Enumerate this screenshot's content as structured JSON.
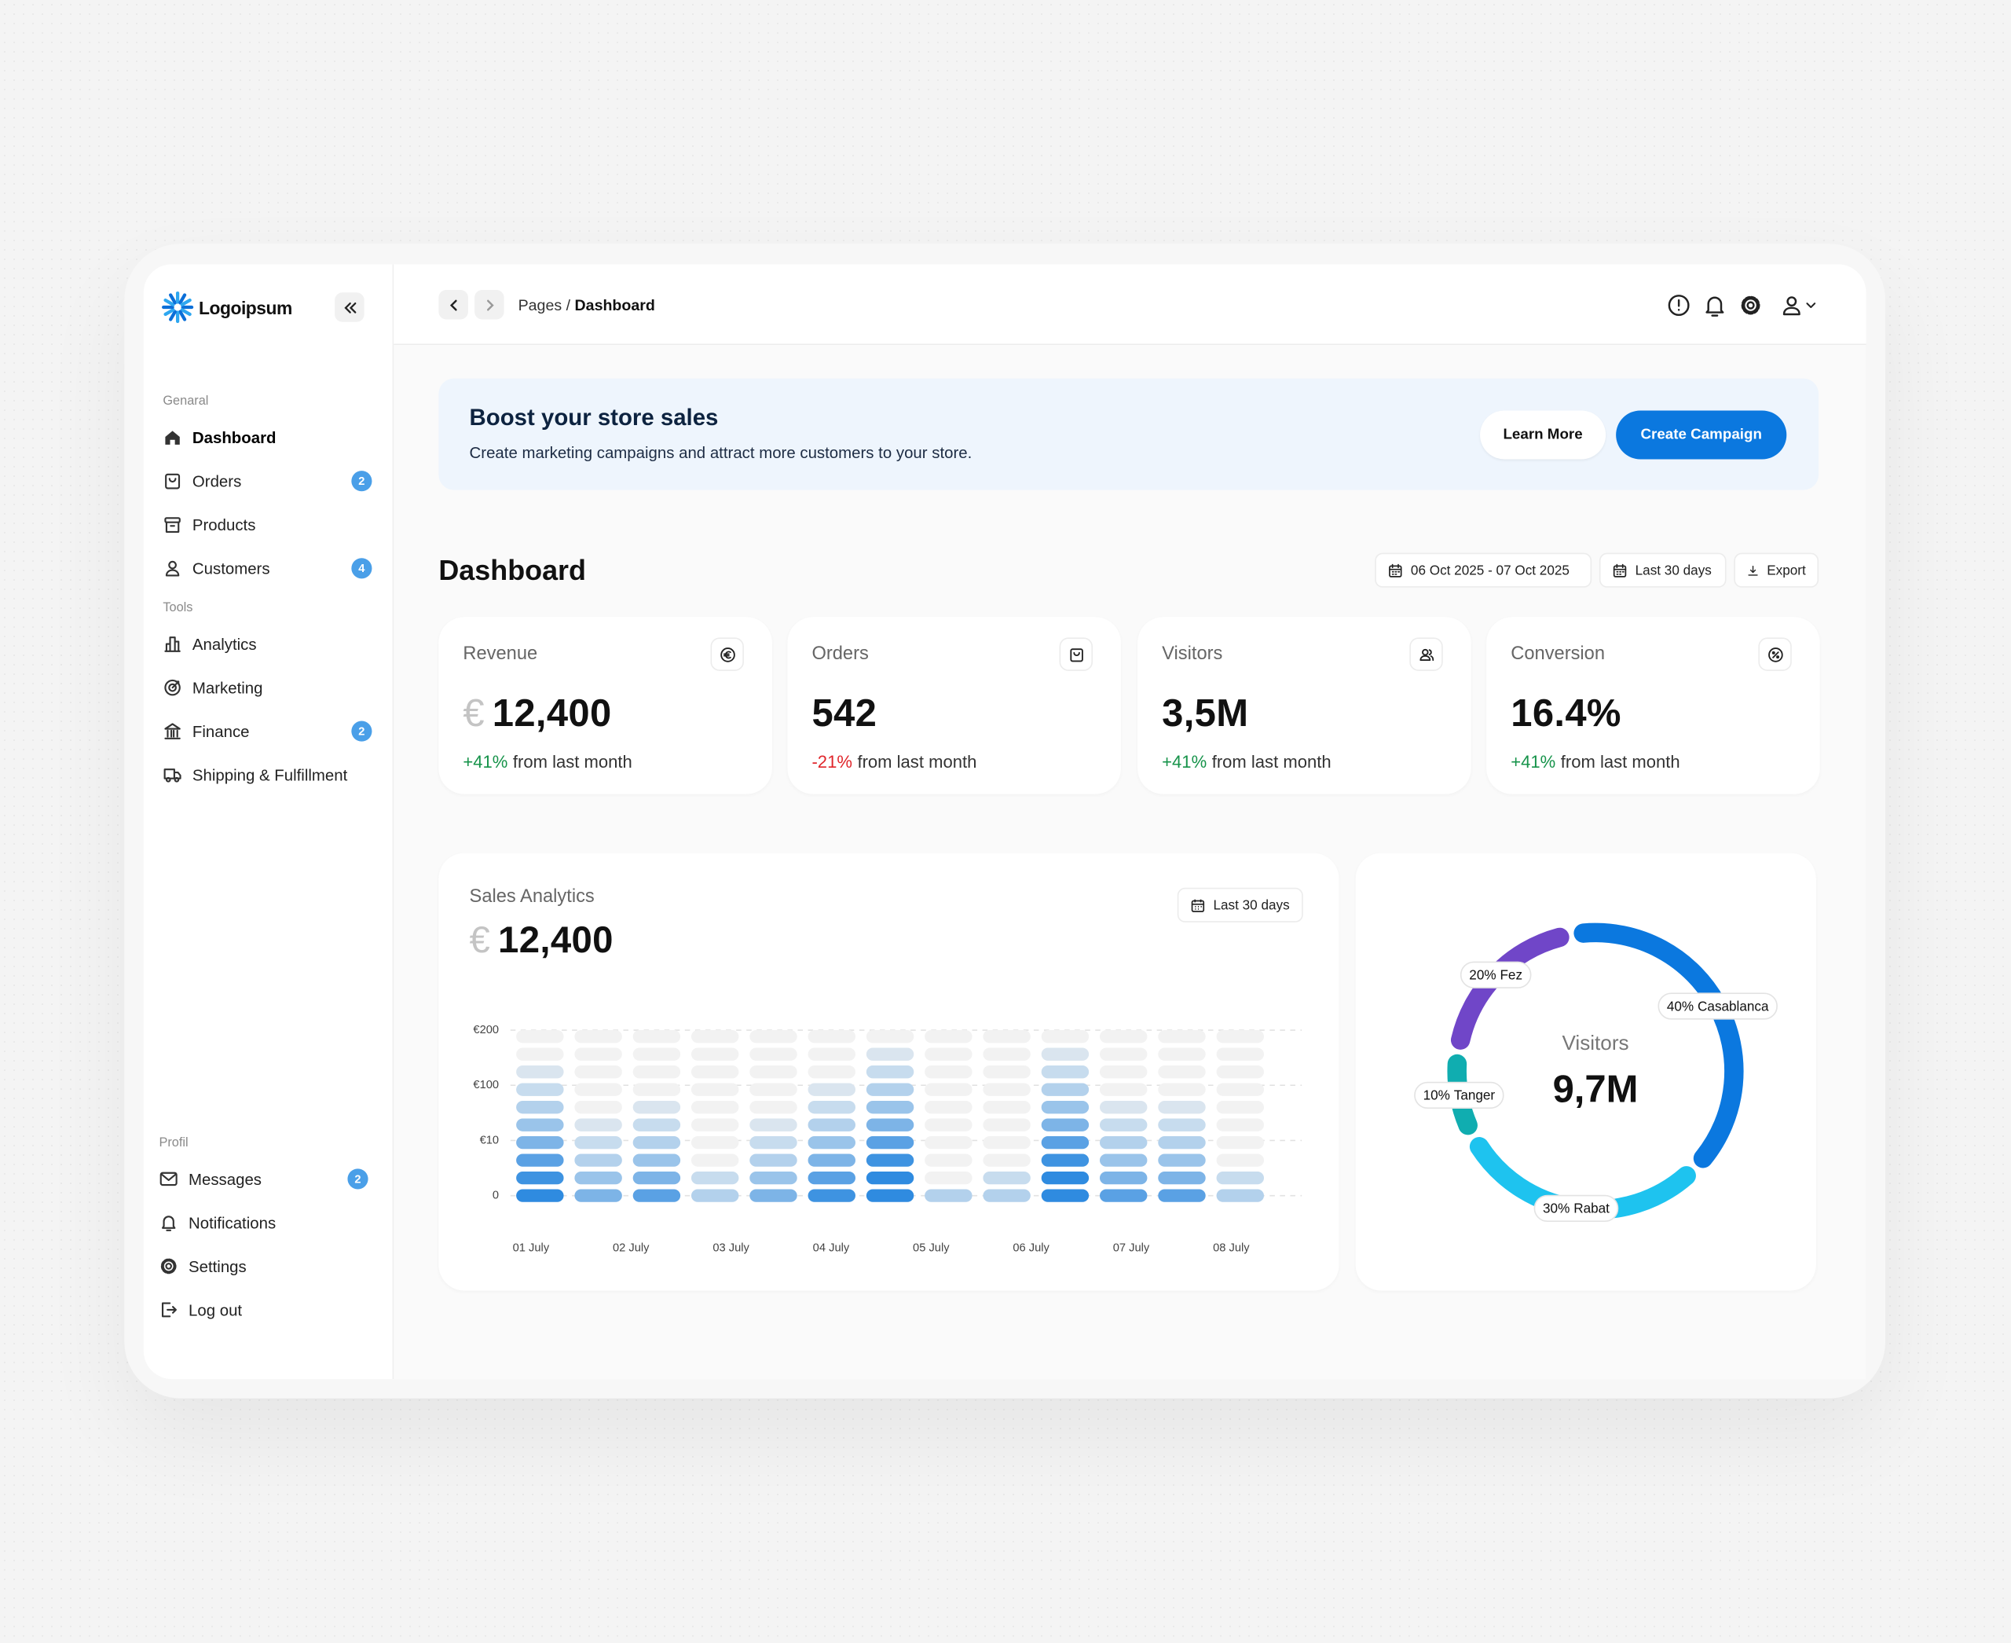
{
  "sidebar": {
    "logo": "Logoipsum",
    "sections": [
      {
        "title": "Genaral",
        "items": [
          {
            "label": "Dashboard"
          },
          {
            "label": "Orders",
            "badge": "2"
          },
          {
            "label": "Products"
          },
          {
            "label": "Customers",
            "badge": "4"
          }
        ]
      },
      {
        "title": "Tools",
        "items": [
          {
            "label": "Analytics"
          },
          {
            "label": "Marketing"
          },
          {
            "label": "Finance",
            "badge": "2"
          },
          {
            "label": "Shipping & Fulfillment"
          }
        ]
      },
      {
        "title": "Profil",
        "items": [
          {
            "label": "Messages",
            "badge": "2"
          },
          {
            "label": "Notifications"
          },
          {
            "label": "Settings"
          },
          {
            "label": "Log out"
          }
        ]
      }
    ]
  },
  "header": {
    "breadcrumb_parent": "Pages",
    "separator": "/",
    "breadcrumb_current": "Dashboard"
  },
  "banner": {
    "title": "Boost your store sales",
    "text": "Create marketing campaigns and attract more customers to your store.",
    "buttons": [
      "Learn More",
      "Create Campaign"
    ]
  },
  "dashboard": {
    "title": "Dashboard",
    "filters": [
      "06 Oct 2025 - 07 Oct 2025",
      "Last 30 days",
      "Export"
    ]
  },
  "kpis": [
    {
      "label": "Revenue",
      "currency": "€",
      "value": "12,400",
      "change": "+41%",
      "change_text": "from last month"
    },
    {
      "label": "Orders",
      "value": "542",
      "change": "-21%",
      "change_text": "from last month"
    },
    {
      "label": "Visitors",
      "value": "3,5M",
      "change": "+41%",
      "change_text": "from last month"
    },
    {
      "label": "Conversion",
      "value": "16.4%",
      "change": "+41%",
      "change_text": "from last month"
    }
  ],
  "chart_data": [
    {
      "type": "bar",
      "title": "Sales Analytics",
      "currency": "€",
      "total": "12,400",
      "filter": "Last 30 days",
      "x_labels": [
        "01 July",
        "02 July",
        "03 July",
        "04 July",
        "05 July",
        "06 July",
        "07 July",
        "08 July"
      ],
      "values": [
        120,
        35,
        64,
        3,
        35,
        92,
        155,
        1,
        3,
        155,
        64,
        64,
        3
      ],
      "color": "#2f8be0",
      "ylim": [
        0,
        200
      ],
      "yticks": [
        0,
        {
          "value": 10,
          "label": "€10"
        },
        {
          "value": 100,
          "label": "€100"
        },
        {
          "value": 200,
          "label": "€200"
        }
      ],
      "yscale": "tick-spaced",
      "grid": true
    },
    {
      "type": "donut",
      "center_label": "Visitors",
      "center_value": "9,7M",
      "categories": [
        "Casablanca",
        "Rabat",
        "Tanger",
        "Fez"
      ],
      "values": [
        40,
        30,
        10,
        20
      ],
      "value_labels": [
        "40%",
        "30%",
        "10%",
        "20%"
      ],
      "colors": [
        "#0b78df",
        "#1ec3ef",
        "#10adb0",
        "#7046c8"
      ]
    }
  ]
}
